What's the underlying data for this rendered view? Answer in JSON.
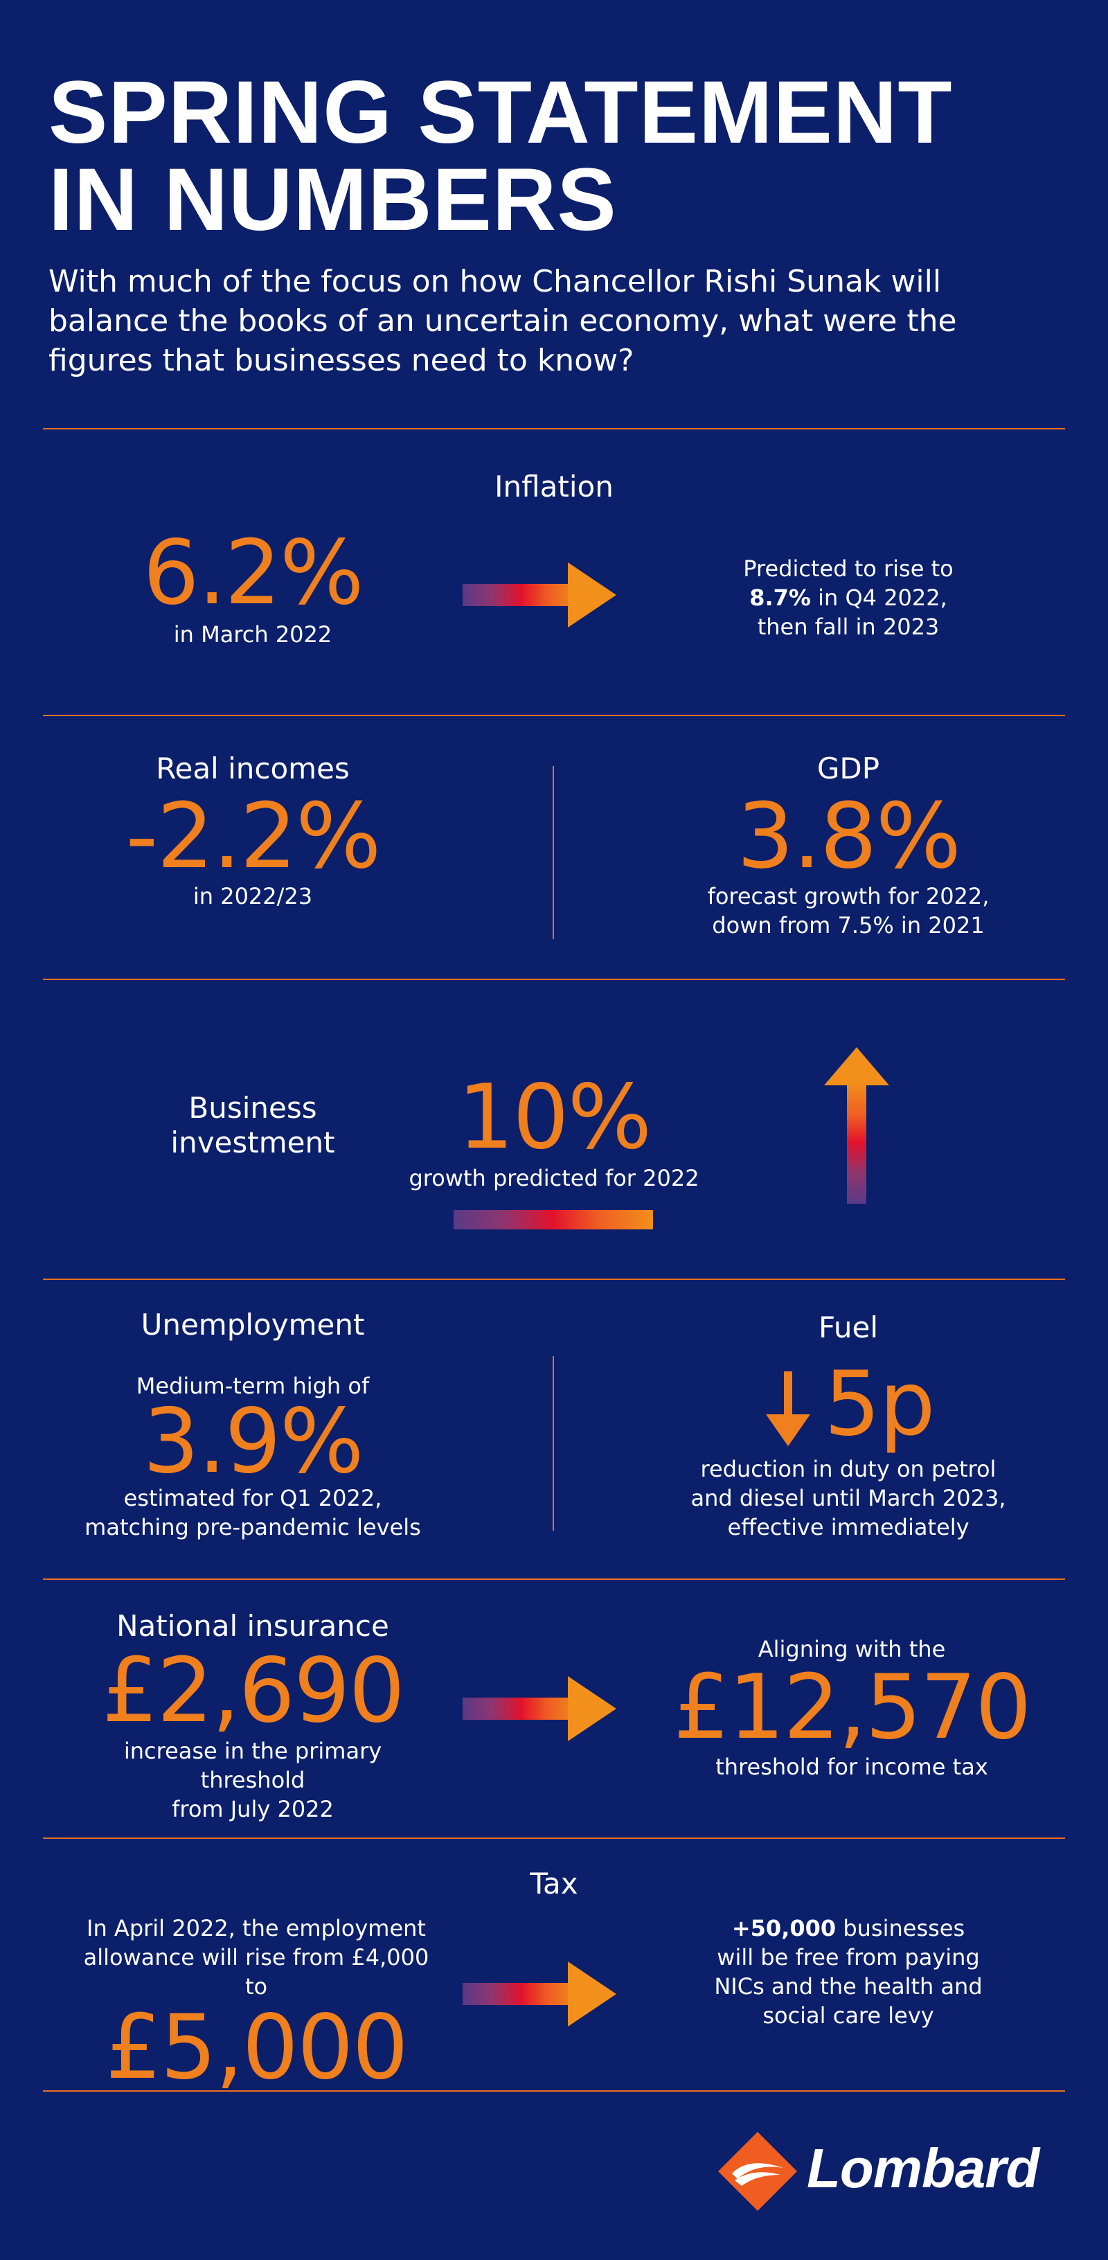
{
  "header": {
    "title_line1": "SPRING STATEMENT",
    "title_line2": "IN NUMBERS",
    "intro": "With much of the focus on how Chancellor Rishi Sunak will balance the books of an uncertain economy, what were the figures that businesses need to know?"
  },
  "inflation": {
    "label": "Inflation",
    "value": "6.2%",
    "caption": "in March 2022",
    "prediction_prefix": "Predicted to rise to",
    "prediction_bold": "8.7%",
    "prediction_rest": " in Q4 2022,",
    "prediction_line3": "then fall in 2023"
  },
  "real_incomes": {
    "label": "Real incomes",
    "value": "-2.2%",
    "caption": "in 2022/23"
  },
  "gdp": {
    "label": "GDP",
    "value": "3.8%",
    "caption_line1": "forecast growth for 2022,",
    "caption_line2": "down from 7.5% in 2021"
  },
  "business_investment": {
    "label_line1": "Business",
    "label_line2": "investment",
    "value": "10%",
    "caption": "growth predicted for 2022"
  },
  "unemployment": {
    "label": "Unemployment",
    "prefix": "Medium-term high of",
    "value": "3.9%",
    "caption_line1": "estimated for Q1 2022,",
    "caption_line2": "matching pre-pandemic levels"
  },
  "fuel": {
    "label": "Fuel",
    "value": "5p",
    "caption_line1": "reduction in duty on petrol",
    "caption_line2": "and diesel until March 2023,",
    "caption_line3": "effective immediately"
  },
  "national_insurance": {
    "label": "National insurance",
    "value": "£2,690",
    "caption_line1": "increase in the primary threshold",
    "caption_line2": "from July 2022",
    "align_prefix": "Aligning with the",
    "align_value": "£12,570",
    "align_caption": "threshold for income tax"
  },
  "tax": {
    "label": "Tax",
    "prefix_line1": "In April 2022, the employment",
    "prefix_line2": "allowance will rise from £4,000 to",
    "value": "£5,000",
    "right_bold": "+50,000",
    "right_rest": " businesses",
    "right_line2": "will be free from paying",
    "right_line3": "NICs and the health and",
    "right_line4": "social care levy"
  },
  "brand": {
    "name": "Lombard"
  },
  "colors": {
    "background": "#0b1f6b",
    "accent_orange": "#f07f1e",
    "rule": "#e8701d"
  },
  "icons": [
    "arrow-right-icon",
    "arrow-up-icon",
    "arrow-down-icon",
    "lombard-logo-icon"
  ]
}
